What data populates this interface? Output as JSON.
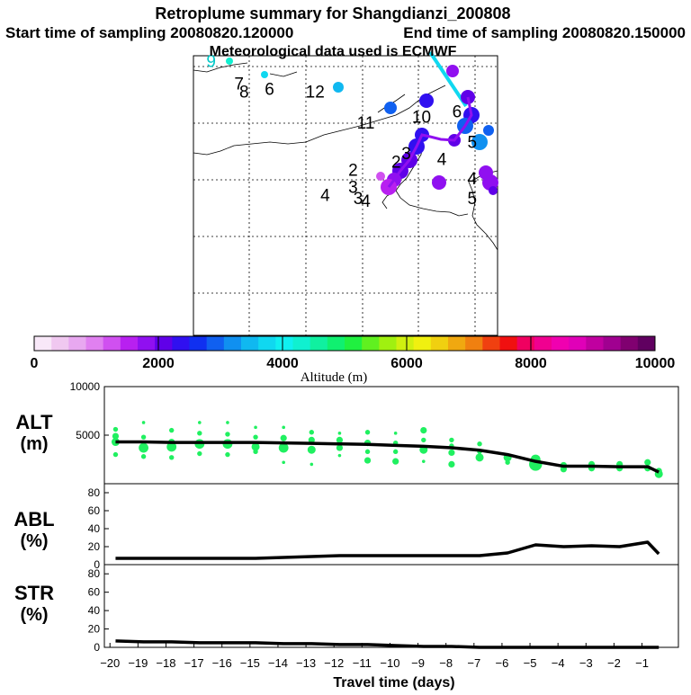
{
  "header": {
    "title": "Retroplume summary for Shangdianzi_200808",
    "start_time": "Start time of sampling 20080820.120000",
    "end_time": "End time of sampling 20080820.150000",
    "met_data": "Meteorological data used is ECMWF"
  },
  "map": {
    "labels": [
      {
        "text": "9",
        "lon": 0.27,
        "lat": 0.96,
        "color": "#00c8c8"
      },
      {
        "text": "7",
        "lon": 0.38,
        "lat": 0.88,
        "color": "#000000"
      },
      {
        "text": "8",
        "lon": 0.4,
        "lat": 0.85,
        "color": "#000000"
      },
      {
        "text": "6",
        "lon": 0.5,
        "lat": 0.86,
        "color": "#000000"
      },
      {
        "text": "12",
        "lon": 0.68,
        "lat": 0.85,
        "color": "#000000"
      },
      {
        "text": "11",
        "lon": 0.88,
        "lat": 0.74,
        "color": "#000000"
      },
      {
        "text": "10",
        "lon": 1.1,
        "lat": 0.76,
        "color": "#000000"
      },
      {
        "text": "6",
        "lon": 1.24,
        "lat": 0.78,
        "color": "#000000"
      },
      {
        "text": "2",
        "lon": 0.83,
        "lat": 0.57,
        "color": "#000000"
      },
      {
        "text": "3",
        "lon": 0.83,
        "lat": 0.51,
        "color": "#000000"
      },
      {
        "text": "4",
        "lon": 0.72,
        "lat": 0.48,
        "color": "#000000"
      },
      {
        "text": "3",
        "lon": 0.85,
        "lat": 0.47,
        "color": "#000000"
      },
      {
        "text": "4",
        "lon": 0.88,
        "lat": 0.46,
        "color": "#000000"
      },
      {
        "text": "2",
        "lon": 1.0,
        "lat": 0.6,
        "color": "#000000"
      },
      {
        "text": "3",
        "lon": 1.04,
        "lat": 0.63,
        "color": "#000000"
      },
      {
        "text": "4",
        "lon": 1.18,
        "lat": 0.61,
        "color": "#000000"
      },
      {
        "text": "5",
        "lon": 1.3,
        "lat": 0.67,
        "color": "#000000"
      },
      {
        "text": "4",
        "lon": 1.3,
        "lat": 0.54,
        "color": "#000000"
      },
      {
        "text": "5",
        "lon": 1.3,
        "lat": 0.47,
        "color": "#000000"
      }
    ]
  },
  "colorbar": {
    "ticks": [
      "0",
      "2000",
      "4000",
      "6000",
      "8000",
      "10000"
    ],
    "label": "Altitude  (m)",
    "colors": [
      "#f8e8f8",
      "#f0c8f0",
      "#e8a8f0",
      "#e080f0",
      "#d050f0",
      "#b820f0",
      "#9010f0",
      "#6000e8",
      "#3010f0",
      "#1030f0",
      "#1060f0",
      "#1090f0",
      "#10b8f0",
      "#10d8f0",
      "#10f0f0",
      "#10f0d0",
      "#10f0a0",
      "#10f070",
      "#20f040",
      "#60f020",
      "#a0f010",
      "#d0f010",
      "#f0f010",
      "#f0d010",
      "#f0a810",
      "#f08010",
      "#f04010",
      "#f01010",
      "#f00060",
      "#f00090",
      "#f000b0",
      "#e000b8",
      "#c000a0",
      "#a00090",
      "#800070",
      "#600060"
    ]
  },
  "alt_panel": {
    "label_line1": "ALT",
    "label_line2": "(m)"
  },
  "abl_panel": {
    "label_line1": "ABL",
    "label_line2": "(%)"
  },
  "str_panel": {
    "label_line1": "STR",
    "label_line2": "(%)"
  },
  "chart_data": [
    {
      "type": "line",
      "title": "ALT (m)",
      "xlabel": "Travel time (days)",
      "ylabel": "ALT (m)",
      "xlim": [
        -20.2,
        0.3
      ],
      "ylim": [
        0,
        10000
      ],
      "yticks": [
        5000,
        10000
      ],
      "x": [
        -19.8,
        -18.8,
        -17.8,
        -16.8,
        -15.8,
        -14.8,
        -13.8,
        -12.8,
        -11.8,
        -10.8,
        -9.8,
        -8.8,
        -7.8,
        -6.8,
        -5.8,
        -4.8,
        -3.8,
        -2.8,
        -1.8,
        -0.8,
        -0.4
      ],
      "values": [
        4300,
        4300,
        4250,
        4250,
        4250,
        4250,
        4200,
        4150,
        4100,
        4050,
        3950,
        3850,
        3700,
        3450,
        3000,
        2300,
        1800,
        1800,
        1750,
        1750,
        1200
      ],
      "cluster_points": [
        {
          "x": -19.8,
          "y": 5600,
          "size": 3
        },
        {
          "x": -19.8,
          "y": 4900,
          "size": 4
        },
        {
          "x": -19.8,
          "y": 4300,
          "size": 5
        },
        {
          "x": -19.8,
          "y": 3000,
          "size": 3
        },
        {
          "x": -18.8,
          "y": 6300,
          "size": 2
        },
        {
          "x": -18.8,
          "y": 4800,
          "size": 3
        },
        {
          "x": -18.8,
          "y": 3700,
          "size": 6
        },
        {
          "x": -18.8,
          "y": 2800,
          "size": 3
        },
        {
          "x": -17.8,
          "y": 5500,
          "size": 3
        },
        {
          "x": -17.8,
          "y": 4300,
          "size": 4
        },
        {
          "x": -17.8,
          "y": 3800,
          "size": 6
        },
        {
          "x": -17.8,
          "y": 2700,
          "size": 3
        },
        {
          "x": -16.8,
          "y": 6300,
          "size": 2
        },
        {
          "x": -16.8,
          "y": 5200,
          "size": 3
        },
        {
          "x": -16.8,
          "y": 4100,
          "size": 6
        },
        {
          "x": -16.8,
          "y": 3100,
          "size": 3
        },
        {
          "x": -15.8,
          "y": 6300,
          "size": 2
        },
        {
          "x": -15.8,
          "y": 5100,
          "size": 3
        },
        {
          "x": -15.8,
          "y": 4100,
          "size": 6
        },
        {
          "x": -15.8,
          "y": 3000,
          "size": 3
        },
        {
          "x": -14.8,
          "y": 5800,
          "size": 2
        },
        {
          "x": -14.8,
          "y": 4800,
          "size": 3
        },
        {
          "x": -14.8,
          "y": 3800,
          "size": 5
        },
        {
          "x": -14.8,
          "y": 3300,
          "size": 3
        },
        {
          "x": -13.8,
          "y": 5800,
          "size": 2
        },
        {
          "x": -13.8,
          "y": 4700,
          "size": 4
        },
        {
          "x": -13.8,
          "y": 3700,
          "size": 6
        },
        {
          "x": -13.8,
          "y": 2200,
          "size": 2
        },
        {
          "x": -12.8,
          "y": 5300,
          "size": 3
        },
        {
          "x": -12.8,
          "y": 4500,
          "size": 4
        },
        {
          "x": -12.8,
          "y": 3500,
          "size": 5
        },
        {
          "x": -12.8,
          "y": 2000,
          "size": 2
        },
        {
          "x": -11.8,
          "y": 5200,
          "size": 2
        },
        {
          "x": -11.8,
          "y": 4500,
          "size": 4
        },
        {
          "x": -11.8,
          "y": 3700,
          "size": 4
        },
        {
          "x": -11.8,
          "y": 2900,
          "size": 2
        },
        {
          "x": -10.8,
          "y": 5300,
          "size": 3
        },
        {
          "x": -10.8,
          "y": 4200,
          "size": 4
        },
        {
          "x": -10.8,
          "y": 3300,
          "size": 3
        },
        {
          "x": -10.8,
          "y": 2400,
          "size": 4
        },
        {
          "x": -9.8,
          "y": 5200,
          "size": 2
        },
        {
          "x": -9.8,
          "y": 4200,
          "size": 3
        },
        {
          "x": -9.8,
          "y": 3300,
          "size": 3
        },
        {
          "x": -9.8,
          "y": 2300,
          "size": 4
        },
        {
          "x": -8.8,
          "y": 5500,
          "size": 4
        },
        {
          "x": -8.8,
          "y": 4500,
          "size": 3
        },
        {
          "x": -8.8,
          "y": 3500,
          "size": 5
        },
        {
          "x": -8.8,
          "y": 2300,
          "size": 2
        },
        {
          "x": -7.8,
          "y": 4500,
          "size": 3
        },
        {
          "x": -7.8,
          "y": 3900,
          "size": 3
        },
        {
          "x": -7.8,
          "y": 3200,
          "size": 4
        },
        {
          "x": -7.8,
          "y": 2000,
          "size": 4
        },
        {
          "x": -6.8,
          "y": 4100,
          "size": 3
        },
        {
          "x": -6.8,
          "y": 3300,
          "size": 3
        },
        {
          "x": -6.8,
          "y": 2700,
          "size": 5
        },
        {
          "x": -5.8,
          "y": 2700,
          "size": 5
        },
        {
          "x": -5.8,
          "y": 2200,
          "size": 3
        },
        {
          "x": -4.8,
          "y": 2500,
          "size": 6
        },
        {
          "x": -4.8,
          "y": 2000,
          "size": 8
        },
        {
          "x": -3.8,
          "y": 1900,
          "size": 4
        },
        {
          "x": -3.8,
          "y": 1500,
          "size": 4
        },
        {
          "x": -2.8,
          "y": 2000,
          "size": 4
        },
        {
          "x": -2.8,
          "y": 1600,
          "size": 4
        },
        {
          "x": -1.8,
          "y": 2000,
          "size": 4
        },
        {
          "x": -1.8,
          "y": 1600,
          "size": 4
        },
        {
          "x": -0.8,
          "y": 2200,
          "size": 4
        },
        {
          "x": -0.8,
          "y": 1600,
          "size": 4
        },
        {
          "x": -0.4,
          "y": 1300,
          "size": 4
        },
        {
          "x": -0.4,
          "y": 1000,
          "size": 5
        }
      ]
    },
    {
      "type": "line",
      "title": "ABL (%)",
      "ylabel": "ABL (%)",
      "xlim": [
        -20.2,
        0.3
      ],
      "ylim": [
        0,
        90
      ],
      "yticks": [
        0,
        20,
        40,
        60,
        80
      ],
      "x": [
        -19.8,
        -18.8,
        -17.8,
        -16.8,
        -15.8,
        -14.8,
        -13.8,
        -12.8,
        -11.8,
        -10.8,
        -9.8,
        -8.8,
        -7.8,
        -6.8,
        -5.8,
        -4.8,
        -3.8,
        -2.8,
        -1.8,
        -0.8,
        -0.4
      ],
      "values": [
        7,
        7,
        7,
        7,
        7,
        7,
        8,
        9,
        10,
        10,
        10,
        10,
        10,
        10,
        13,
        22,
        20,
        21,
        20,
        25,
        12
      ]
    },
    {
      "type": "line",
      "title": "STR (%)",
      "xlabel": "Travel time (days)",
      "ylabel": "STR (%)",
      "xlim": [
        -20.2,
        0.3
      ],
      "ylim": [
        0,
        90
      ],
      "yticks": [
        0,
        20,
        40,
        60,
        80
      ],
      "xticks": [
        -20,
        -19,
        -18,
        -17,
        -16,
        -15,
        -14,
        -13,
        -12,
        -11,
        -10,
        -9,
        -8,
        -7,
        -6,
        -5,
        -4,
        -3,
        -2,
        -1
      ],
      "x": [
        -19.8,
        -18.8,
        -17.8,
        -16.8,
        -15.8,
        -14.8,
        -13.8,
        -12.8,
        -11.8,
        -10.8,
        -9.8,
        -8.8,
        -7.8,
        -6.8,
        -5.8,
        -4.8,
        -3.8,
        -2.8,
        -1.8,
        -0.8,
        -0.4
      ],
      "values": [
        7,
        6,
        6,
        5,
        5,
        5,
        4,
        4,
        3,
        3,
        2,
        1,
        1,
        0,
        0,
        0,
        0,
        0,
        0,
        0,
        0
      ]
    }
  ]
}
